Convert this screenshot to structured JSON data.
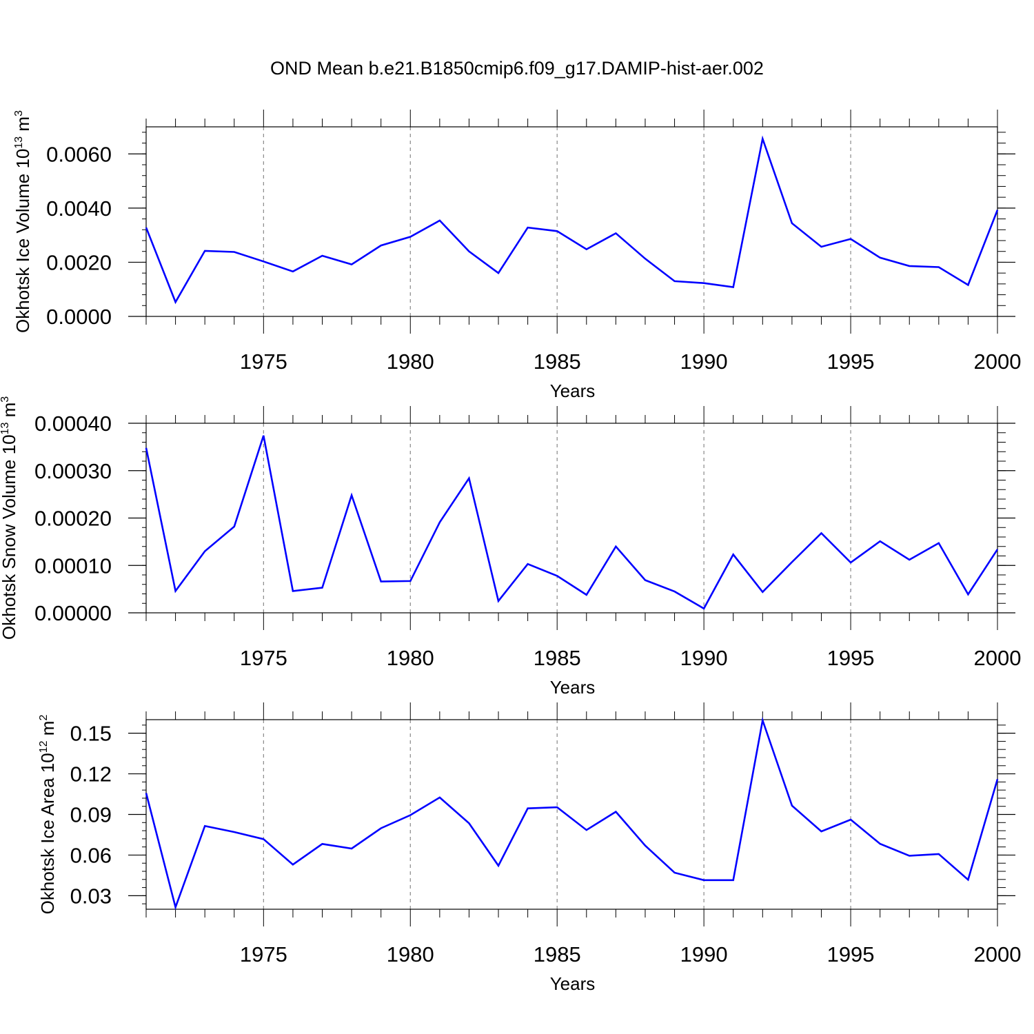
{
  "figure_title": "OND Mean b.e21.B1850cmip6.f09_g17.DAMIP-hist-aer.002",
  "chart_data": [
    {
      "type": "line",
      "title": "OND Mean b.e21.B1850cmip6.f09_g17.DAMIP-hist-aer.002",
      "xlabel": "Years",
      "ylabel": "Okhotsk Ice Volume 10",
      "ylabel_exponent": "13",
      "ylabel_unit": " m",
      "ylabel_unit_exponent": "3",
      "xlim": [
        1971,
        2000
      ],
      "ylim": [
        0.0,
        0.007
      ],
      "yticks": [
        0.0,
        0.002,
        0.004,
        0.006
      ],
      "ytick_labels": [
        "0.0000",
        "0.0020",
        "0.0040",
        "0.0060"
      ],
      "line_color": "#0000ff",
      "series": [
        {
          "name": "Okhotsk Ice Volume",
          "x": [
            1971,
            1972,
            1973,
            1974,
            1975,
            1976,
            1977,
            1978,
            1979,
            1980,
            1981,
            1982,
            1983,
            1984,
            1985,
            1986,
            1987,
            1988,
            1989,
            1990,
            1991,
            1992,
            1993,
            1994,
            1995,
            1996,
            1997,
            1998,
            1999,
            2000
          ],
          "values": [
            0.00328,
            0.00053,
            0.00242,
            0.00238,
            0.00203,
            0.00166,
            0.00224,
            0.00192,
            0.00262,
            0.00294,
            0.00354,
            0.0024,
            0.0016,
            0.00328,
            0.00315,
            0.00248,
            0.00307,
            0.00213,
            0.0013,
            0.00123,
            0.00108,
            0.00656,
            0.00344,
            0.00257,
            0.00286,
            0.00217,
            0.00186,
            0.00182,
            0.00116,
            0.00393
          ]
        }
      ]
    },
    {
      "type": "line",
      "xlabel": "Years",
      "ylabel": "Okhotsk Snow Volume 10",
      "ylabel_exponent": "13",
      "ylabel_unit": " m",
      "ylabel_unit_exponent": "3",
      "xlim": [
        1971,
        2000
      ],
      "ylim": [
        0.0,
        0.0004
      ],
      "yticks": [
        0.0,
        0.0001,
        0.0002,
        0.0003,
        0.0004
      ],
      "ytick_labels": [
        "0.00000",
        "0.00010",
        "0.00020",
        "0.00030",
        "0.00040"
      ],
      "line_color": "#0000ff",
      "series": [
        {
          "name": "Okhotsk Snow Volume",
          "x": [
            1971,
            1972,
            1973,
            1974,
            1975,
            1976,
            1977,
            1978,
            1979,
            1980,
            1981,
            1982,
            1983,
            1984,
            1985,
            1986,
            1987,
            1988,
            1989,
            1990,
            1991,
            1992,
            1993,
            1994,
            1995,
            1996,
            1997,
            1998,
            1999,
            2000
          ],
          "values": [
            0.000348,
            4.6e-05,
            0.00013,
            0.000182,
            0.000374,
            4.6e-05,
            5.3e-05,
            0.000248,
            6.6e-05,
            6.7e-05,
            0.000191,
            0.000284,
            2.5e-05,
            0.000103,
            7.8e-05,
            3.8e-05,
            0.00014,
            6.9e-05,
            4.5e-05,
            9e-06,
            0.000123,
            4.4e-05,
            0.000107,
            0.000168,
            0.000106,
            0.000151,
            0.000112,
            0.000147,
            3.9e-05,
            0.000134
          ]
        }
      ]
    },
    {
      "type": "line",
      "xlabel": "Years",
      "ylabel": "Okhotsk Ice Area 10",
      "ylabel_exponent": "12",
      "ylabel_unit": " m",
      "ylabel_unit_exponent": "2",
      "xlim": [
        1971,
        2000
      ],
      "ylim": [
        0.02,
        0.16
      ],
      "yticks": [
        0.03,
        0.06,
        0.09,
        0.12,
        0.15
      ],
      "ytick_labels": [
        "0.03",
        "0.06",
        "0.09",
        "0.12",
        "0.15"
      ],
      "line_color": "#0000ff",
      "series": [
        {
          "name": "Okhotsk Ice Area",
          "x": [
            1971,
            1972,
            1973,
            1974,
            1975,
            1976,
            1977,
            1978,
            1979,
            1980,
            1981,
            1982,
            1983,
            1984,
            1985,
            1986,
            1987,
            1988,
            1989,
            1990,
            1991,
            1992,
            1993,
            1994,
            1995,
            1996,
            1997,
            1998,
            1999,
            2000
          ],
          "values": [
            0.1058,
            0.0215,
            0.0815,
            0.077,
            0.0718,
            0.053,
            0.0682,
            0.0648,
            0.0798,
            0.0895,
            0.1025,
            0.0835,
            0.0522,
            0.0945,
            0.0953,
            0.0785,
            0.092,
            0.067,
            0.047,
            0.0415,
            0.0415,
            0.1595,
            0.0965,
            0.0775,
            0.0862,
            0.0683,
            0.0595,
            0.0608,
            0.0418,
            0.116
          ]
        }
      ]
    }
  ],
  "x_major_ticks": [
    1975,
    1980,
    1985,
    1990,
    1995,
    2000
  ],
  "x_tick_labels": [
    "1975",
    "1980",
    "1985",
    "1990",
    "1995",
    "2000"
  ]
}
